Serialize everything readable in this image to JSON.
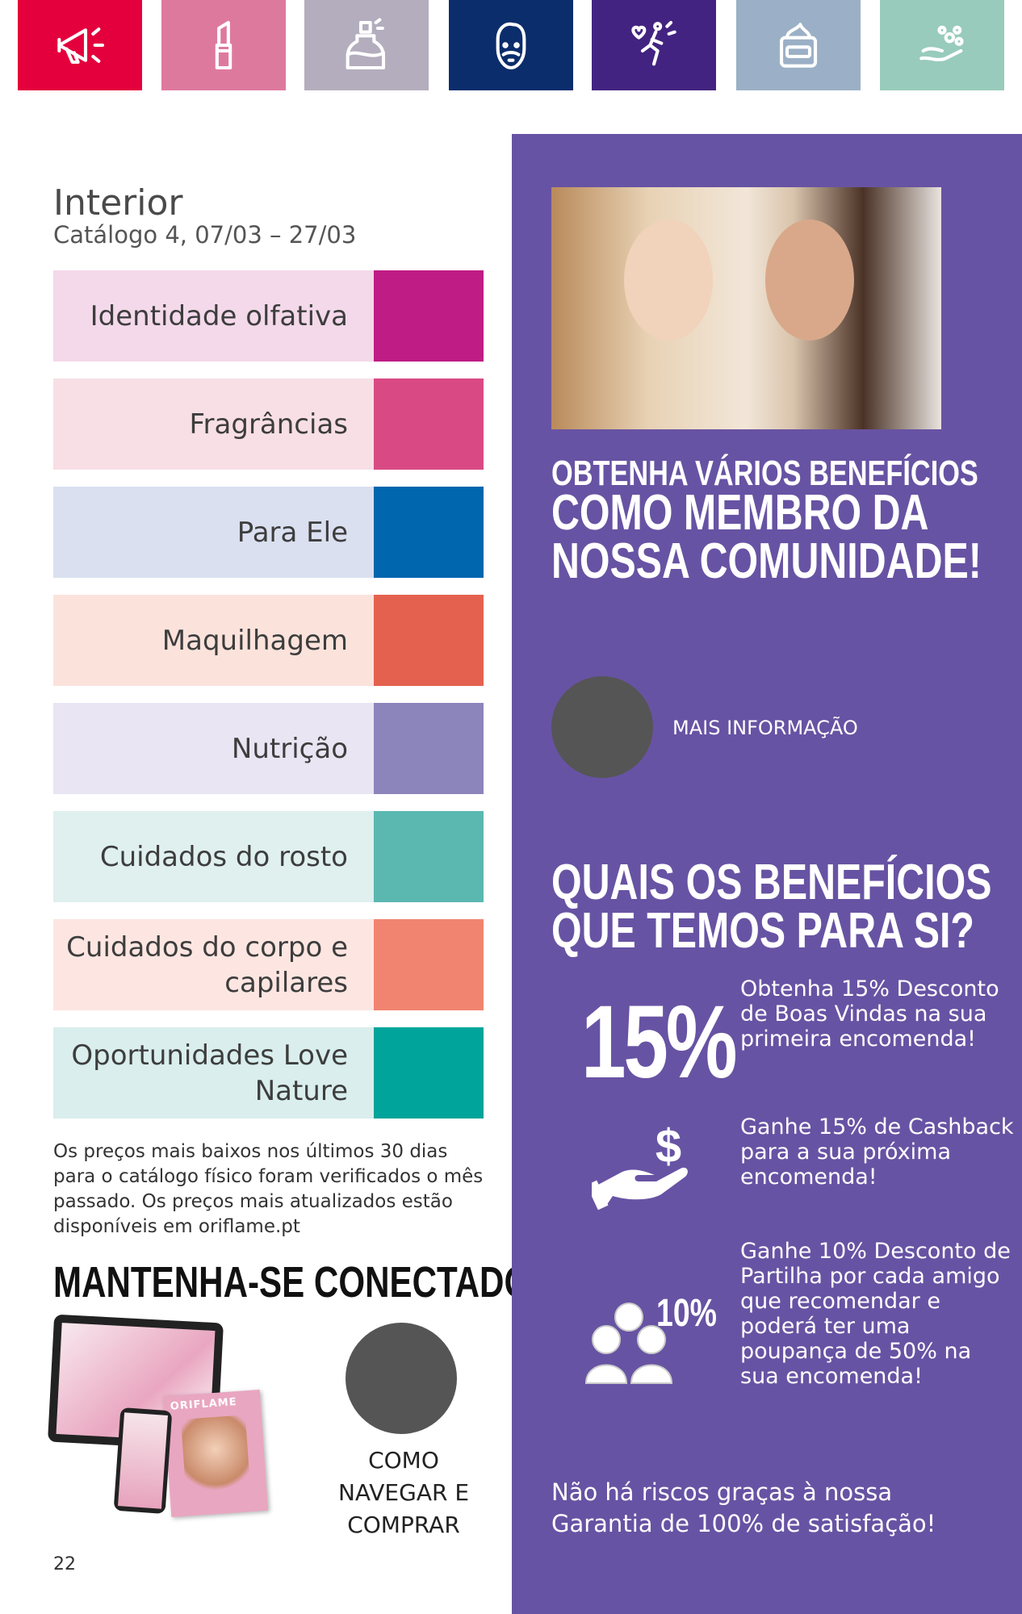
{
  "top_tiles": [
    {
      "icon": "megaphone-icon",
      "color": "#e4003d"
    },
    {
      "icon": "lipstick-icon",
      "color": "#de799e"
    },
    {
      "icon": "perfume-icon",
      "color": "#b4adbd"
    },
    {
      "icon": "bearded-man-icon",
      "color": "#0b2d6c"
    },
    {
      "icon": "wellness-runner-icon",
      "color": "#432381"
    },
    {
      "icon": "cream-jar-icon",
      "color": "#9bb0c6"
    },
    {
      "icon": "washing-hand-icon",
      "color": "#98cbbb"
    }
  ],
  "header": {
    "title": "Interior",
    "subtitle": "Catálogo 4, 07/03 – 27/03"
  },
  "categories": [
    {
      "label": "Identidade olfativa",
      "bg": "#f3d9ea",
      "color": "#c01c85"
    },
    {
      "label": "Fragrâncias",
      "bg": "#f8dfe6",
      "color": "#d94a84"
    },
    {
      "label": "Para Ele",
      "bg": "#dae0f0",
      "color": "#0066ae"
    },
    {
      "label": "Maquilhagem",
      "bg": "#fbe3dc",
      "color": "#e5614f"
    },
    {
      "label": "Nutrição",
      "bg": "#e9e5f3",
      "color": "#8b85bb"
    },
    {
      "label": "Cuidados do rosto",
      "bg": "#dff0ef",
      "color": "#5bb8b1"
    },
    {
      "label": "Cuidados do corpo e capilares",
      "bg": "#fde6e1",
      "color": "#f18471"
    },
    {
      "label": "Oportunidades Love Nature",
      "bg": "#d9eeed",
      "color": "#00a49a"
    }
  ],
  "disclaimer": "Os preços mais baixos nos últimos 30 dias para o catálogo físico foram verificados o mês passado. Os preços mais atualizados estão disponíveis em oriflame.pt",
  "connected": {
    "title": "MANTENHA-SE CONECTADO",
    "device_brand": "ORIFLAME",
    "cta": "COMO NAVEGAR E COMPRAR"
  },
  "page_number": "22",
  "panel": {
    "color": "#6753a3",
    "headline_1": "OBTENHA VÁRIOS BENEFÍCIOS",
    "headline_2": "COMO MEMBRO DA",
    "headline_3": "NOSSA COMUNIDADE!",
    "more_info": "MAIS INFORMAÇÃO",
    "benefits_title_1": "QUAIS OS BENEFÍCIOS",
    "benefits_title_2": "QUE TEMOS PARA SI?",
    "benefits": [
      {
        "badge": "15%",
        "text": "Obtenha 15% Desconto de Boas Vindas na sua primeira encomenda!"
      },
      {
        "icon": "hand-dollar-icon",
        "text": "Ganhe 15% de Cashback para a sua próxima encomenda!"
      },
      {
        "badge": "10%",
        "icon": "group-icon",
        "text": "Ganhe 10% Desconto de Partilha por cada amigo que recomendar e poderá ter uma poupança de 50% na sua encomenda!"
      }
    ],
    "footer_1": "Não há riscos graças à nossa",
    "footer_2": "Garantia de 100% de satisfação!"
  }
}
